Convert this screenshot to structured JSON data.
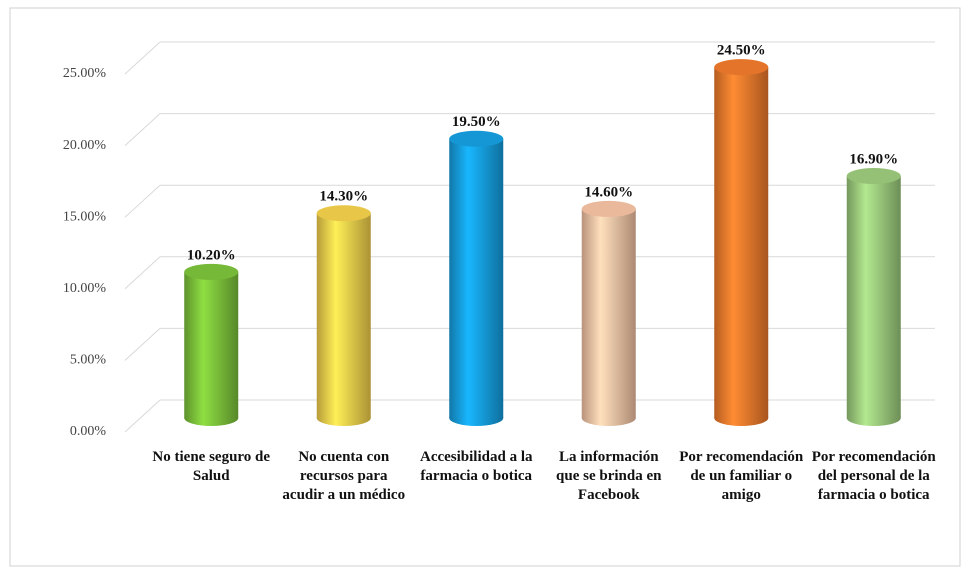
{
  "chart_data": {
    "type": "bar3d",
    "categories": [
      "No tiene seguro de Salud",
      "No cuenta con recursos para acudir a un médico",
      "Accesibilidad a la farmacia o botica",
      "La información que se brinda en Facebook",
      "Por recomendación de un familiar o amigo",
      "Por recomendación del personal de la farmacia o botica"
    ],
    "values": [
      10.2,
      14.3,
      19.5,
      14.6,
      24.5,
      16.9
    ],
    "value_labels": [
      "10.20%",
      "14.30%",
      "19.50%",
      "14.60%",
      "24.50%",
      "16.90%"
    ],
    "colors": [
      "#7cc23a",
      "#f4d04c",
      "#169fe0",
      "#f6c3a4",
      "#f07a2c",
      "#9ccb7c"
    ],
    "ylim": [
      0,
      25
    ],
    "yticks": [
      {
        "value": 0,
        "label": "0.00%"
      },
      {
        "value": 5,
        "label": "5.00%"
      },
      {
        "value": 10,
        "label": "10.00%"
      },
      {
        "value": 15,
        "label": "15.00%"
      },
      {
        "value": 20,
        "label": "20.00%"
      },
      {
        "value": 25,
        "label": "25.00%"
      }
    ],
    "grid": true
  }
}
